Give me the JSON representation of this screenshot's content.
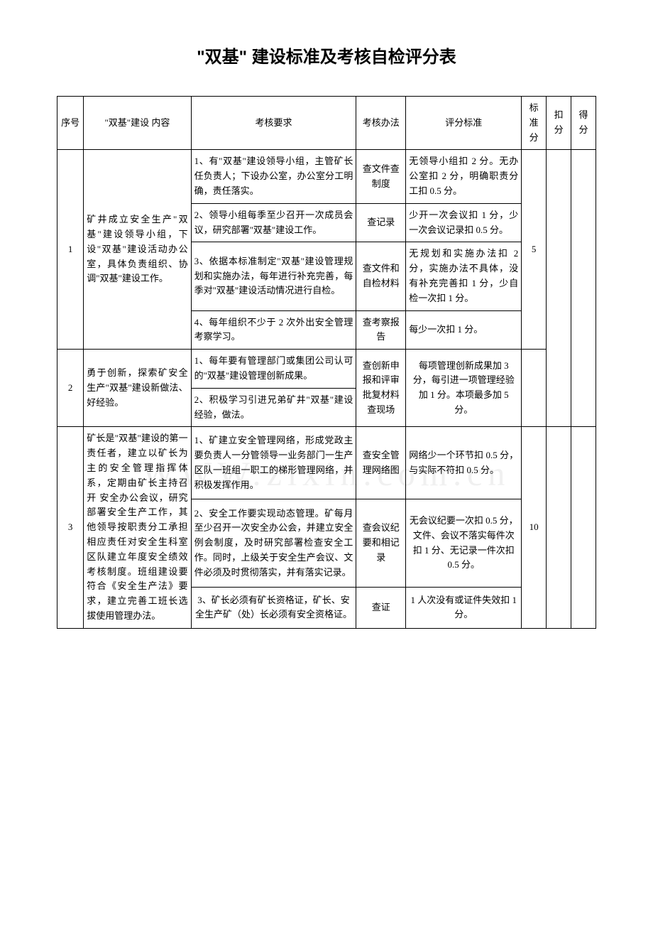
{
  "title": "\"双基\" 建设标准及考核自检评分表",
  "headers": {
    "seq": "序号",
    "content": "\"双基\"建设\n内容",
    "requirement": "考核要求",
    "method": "考核办法",
    "standard": "评分标准",
    "score": "标准分",
    "deduct": "扣分",
    "get": "得分"
  },
  "rows": [
    {
      "seq": "1",
      "content": "矿井成立安全生产\"双基\"建设领导小组，下设\"双基\"建设活动办公室，具体负责组织、协调\"双基\"建设工作。",
      "score": "5",
      "items": [
        {
          "req": "1、有\"双基\"建设领导小组，主管矿长任负责人；下设办公室，办公室分工明确，责任落实。",
          "method": "查文件查制度",
          "std": "无领导小组扣 2 分。无办公室扣 2 分，明确职责分工扣 0.5 分。"
        },
        {
          "req": "2、领导小组每季至少召开一次成员会议，研究部署\"双基\"建设工作。",
          "method": "查记录",
          "std": "少开一次会议扣 1 分，少一次会议记录扣 0.5 分。"
        },
        {
          "req": "3、依据本标准制定\"双基\"建设管理规划和实施办法，每年进行补充完善，每季对\"双基\"建设活动情况进行自检。",
          "method": "查文件和自检材料",
          "std": "无规划和实施办法扣 2 分，实施办法不具体，没有补充完善扣 1 分，少自检一次扣 1 分。"
        },
        {
          "req": "4、每年组织不少于 2 次外出安全管理考察学习。",
          "method": "查考察报告",
          "std": "每少一次扣 1 分。"
        }
      ]
    },
    {
      "seq": "2",
      "content": "勇于创新，探索矿安全生产\"双基\"建设新做法、好经验。",
      "score": "",
      "items": [
        {
          "req": "1、每年要有管理部门或集团公司认可的\"双基\"建设管理创新成果。",
          "method": "查创新申报和评审批复材料查现场",
          "std": "每项管理创新成果加 3 分，每引进一项管理经验加 1 分。本项最多加 5 分。"
        },
        {
          "req": "2、积极学习引进兄弟矿井\"双基\"建设经验，做法。",
          "method": "",
          "std": ""
        }
      ]
    },
    {
      "seq": "3",
      "content": "矿长是\"双基\"建设的第一责任者，建立以矿长为主的安全管理指挥体系，定期由矿长主持召开 安全办公会议，研究部署安全生产工作，其他领导按职责分工承担相应责任对安全生科室区队建立年度安全绩效考核制度。班组建设要符合《安全生产法》要求，建立完善工班长选拔使用管理办法。",
      "score": "10",
      "items": [
        {
          "req": "1、矿建立安全管理网络，形成党政主要负责人一分管领导一业务部门一生产区队一班组一职工的梯形管理网络，并积极发挥作用。",
          "method": "查安全管理网络图",
          "std": "网络少一个环节扣 0.5 分，与实际不符扣 0.5 分。"
        },
        {
          "req": "2、安全工作要实现动态管理。矿每月至少召开一次安全办公会，并建立安全例会制度，及时研究部署检查安全工作。同时，上级关于安全生产会议、文件必须及时贯彻落实，并有落实记录。",
          "method": "查会议纪要和相记录",
          "std": "无会议纪要一次扣 0.5 分，文件、会议不落实每件次扣 1 分、无记录一件次扣 0.5 分。"
        },
        {
          "req": "3、矿长必须有矿长资格证，矿长、安全生产矿（处）长必须有安全资格证。",
          "method": "查证",
          "std": "1 人次没有或证件失效扣 1 分。"
        }
      ]
    }
  ],
  "watermark": "WWW.zixin.com.cn"
}
